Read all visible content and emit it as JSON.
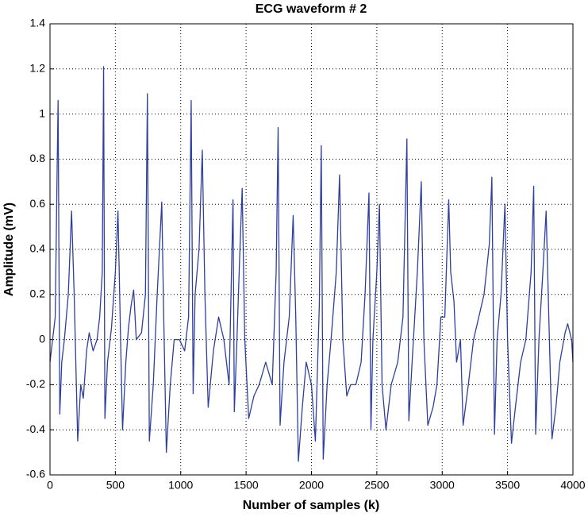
{
  "chart_data": {
    "type": "line",
    "title": "ECG waveform # 2",
    "xlabel": "Number of samples (k)",
    "ylabel": "Amplitude (mV)",
    "x": [
      0,
      20,
      40,
      55,
      62,
      75,
      90,
      110,
      140,
      165,
      185,
      212,
      235,
      255,
      280,
      300,
      330,
      360,
      380,
      400,
      410,
      420,
      440,
      470,
      500,
      520,
      540,
      555,
      580,
      600,
      620,
      640,
      660,
      700,
      730,
      745,
      760,
      790,
      820,
      855,
      870,
      890,
      920,
      950,
      990,
      1030,
      1060,
      1080,
      1095,
      1110,
      1140,
      1165,
      1185,
      1210,
      1250,
      1290,
      1330,
      1370,
      1400,
      1410,
      1430,
      1450,
      1470,
      1490,
      1520,
      1560,
      1600,
      1650,
      1700,
      1730,
      1745,
      1760,
      1790,
      1830,
      1860,
      1880,
      1900,
      1930,
      1960,
      2000,
      2030,
      2060,
      2075,
      2090,
      2120,
      2150,
      2190,
      2215,
      2240,
      2270,
      2300,
      2340,
      2380,
      2410,
      2440,
      2455,
      2470,
      2500,
      2520,
      2540,
      2570,
      2610,
      2660,
      2700,
      2730,
      2745,
      2770,
      2810,
      2840,
      2860,
      2890,
      2930,
      2960,
      2990,
      3020,
      3050,
      3065,
      3090,
      3110,
      3140,
      3160,
      3200,
      3240,
      3280,
      3320,
      3360,
      3380,
      3400,
      3420,
      3450,
      3480,
      3500,
      3530,
      3560,
      3600,
      3640,
      3680,
      3700,
      3715,
      3740,
      3770,
      3795,
      3820,
      3840,
      3870,
      3900,
      3940,
      3960,
      3990,
      4000
    ],
    "series": [
      {
        "name": "ECG",
        "color": "#2e3f9e",
        "values": [
          -0.1,
          0.0,
          0.1,
          0.77,
          1.06,
          -0.33,
          -0.1,
          0.0,
          0.2,
          0.57,
          0.2,
          -0.45,
          -0.2,
          -0.26,
          -0.05,
          0.03,
          -0.05,
          0.0,
          0.1,
          0.3,
          1.21,
          -0.35,
          -0.1,
          0.05,
          0.3,
          0.57,
          0.0,
          -0.4,
          -0.1,
          0.05,
          0.15,
          0.22,
          0.0,
          0.03,
          0.2,
          1.09,
          -0.45,
          -0.2,
          0.2,
          0.61,
          0.1,
          -0.5,
          -0.2,
          0.0,
          0.0,
          -0.05,
          0.1,
          1.06,
          -0.24,
          0.2,
          0.4,
          0.84,
          0.2,
          -0.3,
          -0.05,
          0.1,
          0.0,
          -0.2,
          0.62,
          -0.32,
          0.0,
          0.35,
          0.67,
          0.0,
          -0.35,
          -0.25,
          -0.2,
          -0.1,
          -0.2,
          0.3,
          0.94,
          -0.38,
          -0.1,
          0.1,
          0.55,
          0.1,
          -0.54,
          -0.3,
          -0.1,
          -0.2,
          -0.45,
          0.15,
          0.86,
          -0.53,
          -0.2,
          0.0,
          0.3,
          0.73,
          0.0,
          -0.25,
          -0.2,
          -0.2,
          -0.1,
          0.2,
          0.65,
          -0.4,
          0.0,
          0.3,
          0.6,
          -0.2,
          -0.4,
          -0.2,
          -0.1,
          0.1,
          0.89,
          -0.36,
          -0.1,
          0.3,
          0.7,
          0.0,
          -0.38,
          -0.3,
          -0.2,
          0.1,
          0.1,
          0.62,
          0.3,
          0.17,
          -0.1,
          0.0,
          -0.38,
          -0.2,
          0.0,
          0.1,
          0.2,
          0.42,
          0.72,
          -0.42,
          0.0,
          0.2,
          0.6,
          0.0,
          -0.46,
          -0.3,
          -0.1,
          0.0,
          0.3,
          0.68,
          -0.42,
          0.0,
          0.3,
          0.57,
          0.0,
          -0.44,
          -0.3,
          -0.1,
          0.03,
          0.07,
          0.0,
          -0.1
        ]
      }
    ],
    "xlim": [
      0,
      4000
    ],
    "ylim": [
      -0.6,
      1.4
    ],
    "xticks": [
      0,
      500,
      1000,
      1500,
      2000,
      2500,
      3000,
      3500,
      4000
    ],
    "yticks": [
      -0.6,
      -0.4,
      -0.2,
      0,
      0.2,
      0.4,
      0.6,
      0.8,
      1,
      1.2,
      1.4
    ],
    "grid": true
  }
}
